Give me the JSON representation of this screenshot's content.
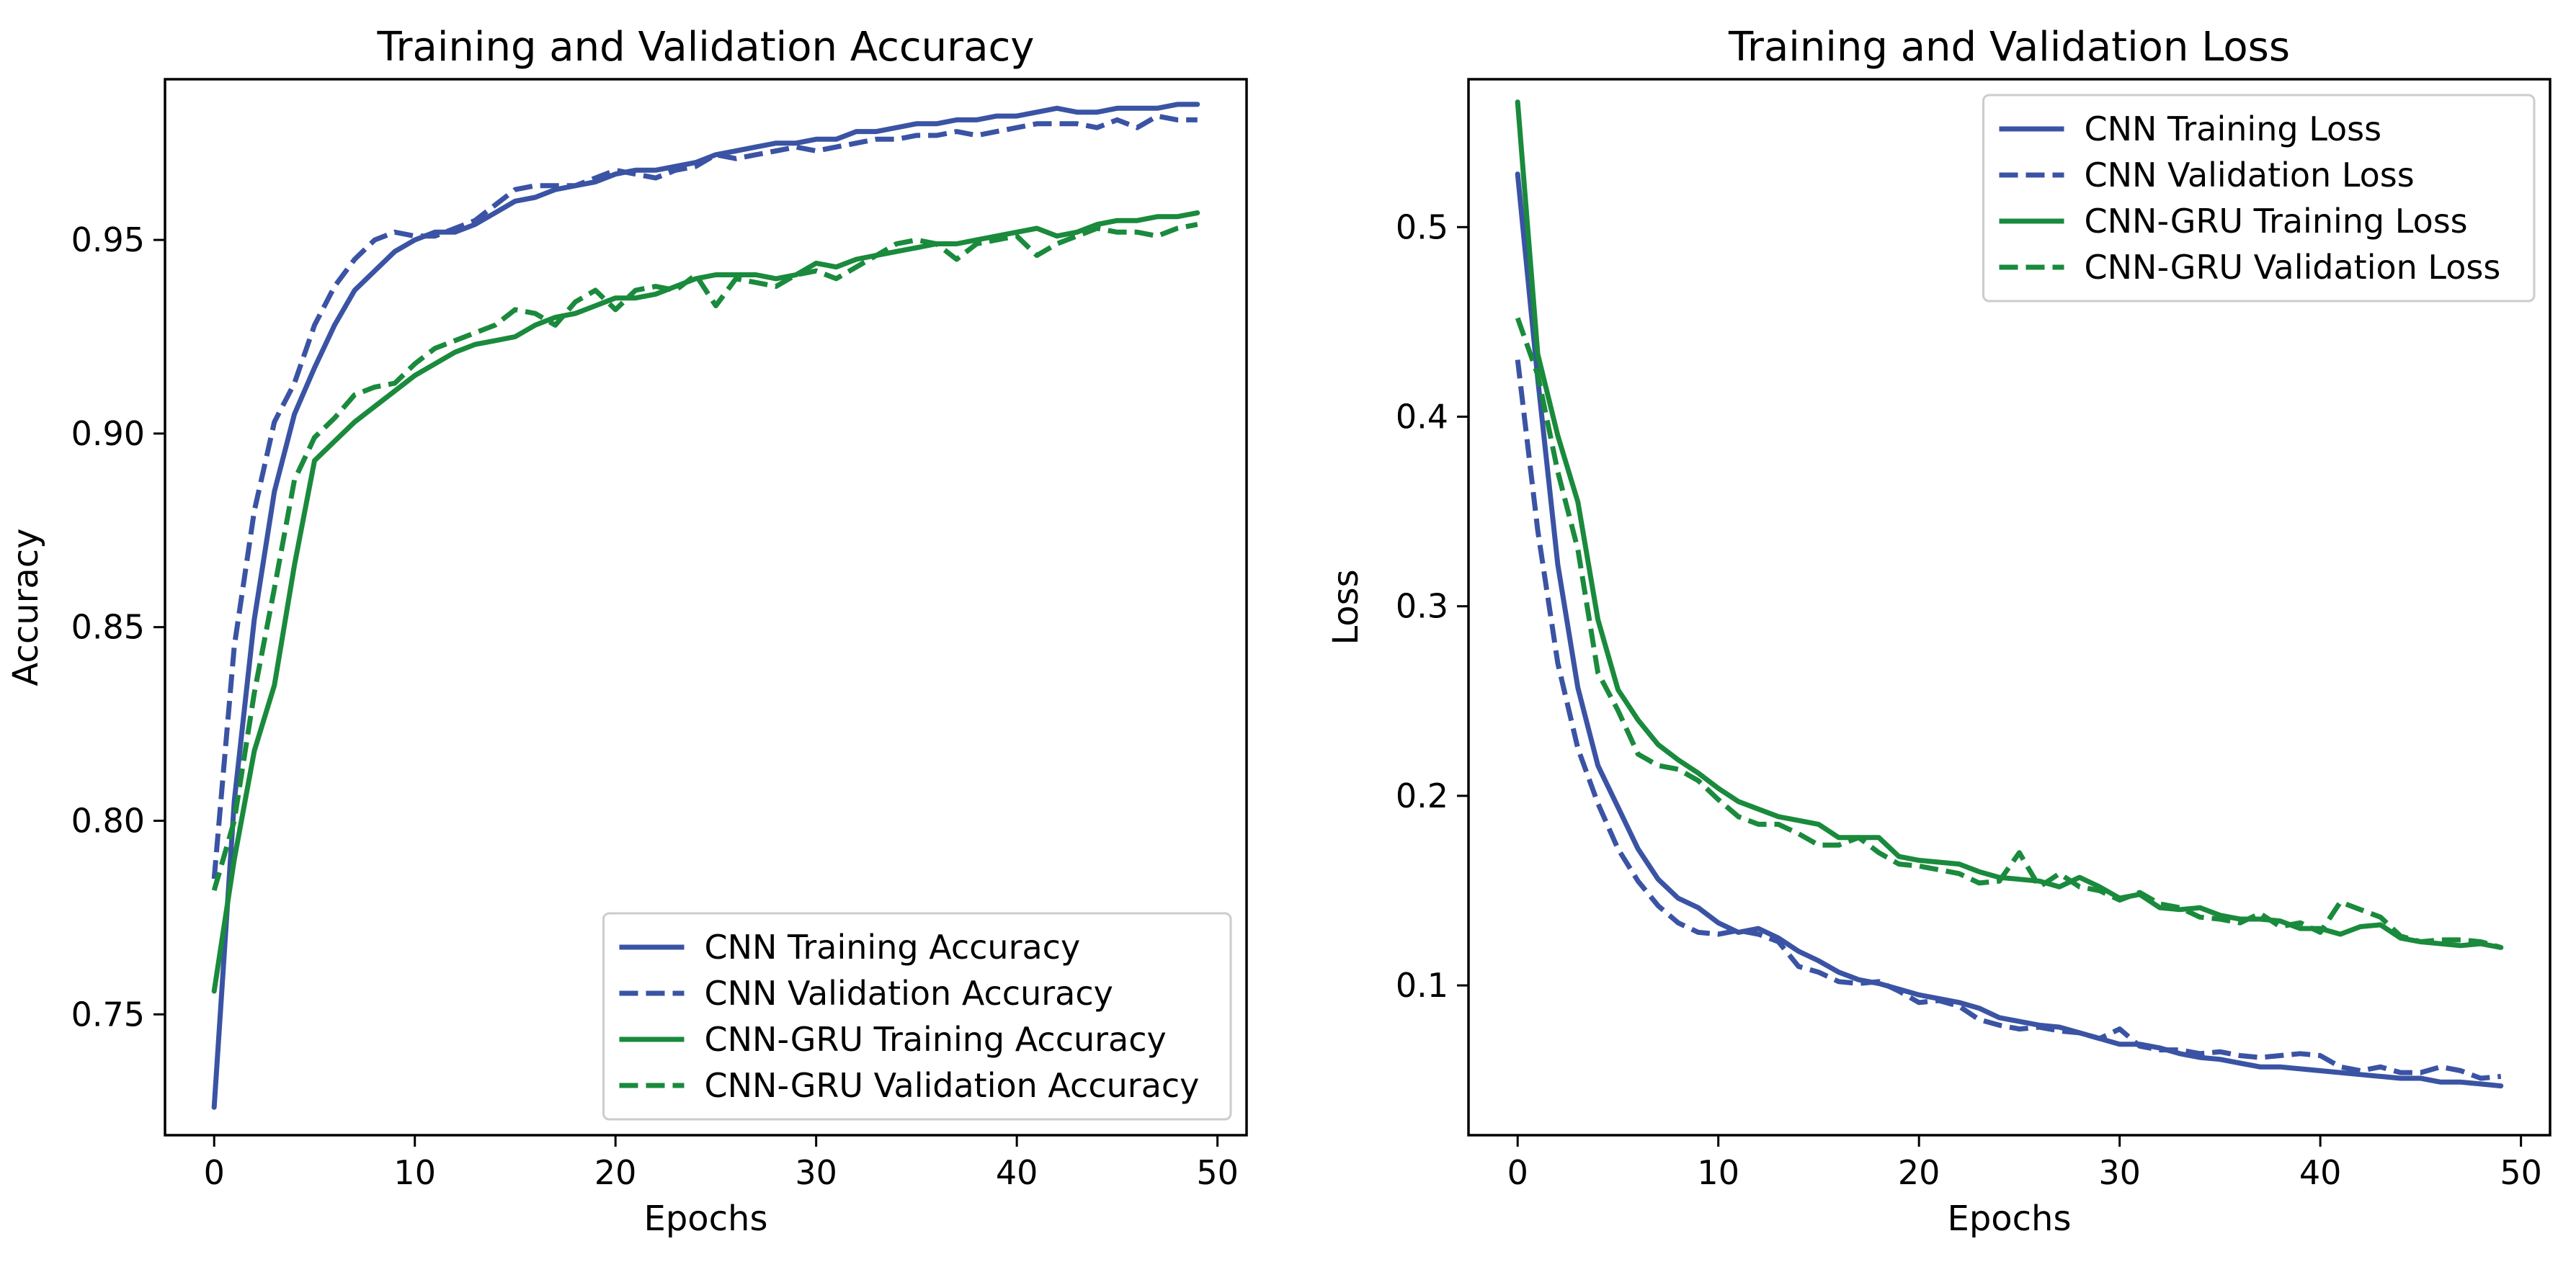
{
  "chart_data": [
    {
      "type": "line",
      "title": "Training and Validation Accuracy",
      "xlabel": "Epochs",
      "ylabel": "Accuracy",
      "xlim": [
        -2.45,
        51.45
      ],
      "ylim": [
        0.7188,
        0.9915
      ],
      "xticks": [
        0,
        10,
        20,
        30,
        40,
        50
      ],
      "xtick_labels": [
        "0",
        "10",
        "20",
        "30",
        "40",
        "50"
      ],
      "yticks": [
        0.75,
        0.8,
        0.85,
        0.9,
        0.95
      ],
      "ytick_labels": [
        "0.75",
        "0.80",
        "0.85",
        "0.90",
        "0.95"
      ],
      "legend_position": "lower-right",
      "series": [
        {
          "name": "CNN Training Accuracy",
          "color": "#3a53a4",
          "dash": "solid",
          "values": [
            0.726,
            0.805,
            0.852,
            0.885,
            0.905,
            0.917,
            0.928,
            0.937,
            0.942,
            0.947,
            0.95,
            0.952,
            0.952,
            0.954,
            0.957,
            0.96,
            0.961,
            0.963,
            0.964,
            0.965,
            0.967,
            0.968,
            0.968,
            0.969,
            0.97,
            0.972,
            0.973,
            0.974,
            0.975,
            0.975,
            0.976,
            0.976,
            0.978,
            0.978,
            0.979,
            0.98,
            0.98,
            0.981,
            0.981,
            0.982,
            0.982,
            0.983,
            0.984,
            0.983,
            0.983,
            0.984,
            0.984,
            0.984,
            0.985,
            0.985
          ]
        },
        {
          "name": "CNN Validation Accuracy",
          "color": "#3a53a4",
          "dash": "dashed",
          "values": [
            0.785,
            0.845,
            0.88,
            0.903,
            0.913,
            0.928,
            0.938,
            0.945,
            0.95,
            0.952,
            0.951,
            0.951,
            0.953,
            0.955,
            0.959,
            0.963,
            0.964,
            0.964,
            0.964,
            0.966,
            0.968,
            0.967,
            0.966,
            0.968,
            0.969,
            0.972,
            0.971,
            0.972,
            0.973,
            0.974,
            0.973,
            0.974,
            0.975,
            0.976,
            0.976,
            0.977,
            0.977,
            0.978,
            0.977,
            0.978,
            0.979,
            0.98,
            0.98,
            0.98,
            0.979,
            0.981,
            0.979,
            0.982,
            0.981,
            0.981
          ]
        },
        {
          "name": "CNN-GRU Training Accuracy",
          "color": "#1a8a3c",
          "dash": "solid",
          "values": [
            0.756,
            0.79,
            0.818,
            0.835,
            0.866,
            0.893,
            0.898,
            0.903,
            0.907,
            0.911,
            0.915,
            0.918,
            0.921,
            0.923,
            0.924,
            0.925,
            0.928,
            0.93,
            0.931,
            0.933,
            0.935,
            0.935,
            0.936,
            0.938,
            0.94,
            0.941,
            0.941,
            0.941,
            0.94,
            0.941,
            0.944,
            0.943,
            0.945,
            0.946,
            0.947,
            0.948,
            0.949,
            0.949,
            0.95,
            0.951,
            0.952,
            0.953,
            0.951,
            0.952,
            0.954,
            0.955,
            0.955,
            0.956,
            0.956,
            0.957
          ]
        },
        {
          "name": "CNN-GRU Validation Accuracy",
          "color": "#1a8a3c",
          "dash": "dashed",
          "values": [
            0.782,
            0.8,
            0.833,
            0.86,
            0.888,
            0.899,
            0.904,
            0.91,
            0.912,
            0.913,
            0.918,
            0.922,
            0.924,
            0.926,
            0.928,
            0.932,
            0.931,
            0.928,
            0.934,
            0.937,
            0.932,
            0.937,
            0.938,
            0.937,
            0.941,
            0.933,
            0.94,
            0.939,
            0.938,
            0.941,
            0.942,
            0.94,
            0.943,
            0.946,
            0.949,
            0.95,
            0.949,
            0.945,
            0.949,
            0.95,
            0.951,
            0.946,
            0.949,
            0.951,
            0.953,
            0.952,
            0.952,
            0.951,
            0.953,
            0.954
          ]
        }
      ]
    },
    {
      "type": "line",
      "title": "Training and Validation Loss",
      "xlabel": "Epochs",
      "ylabel": "Loss",
      "xlim": [
        -2.45,
        51.45
      ],
      "ylim": [
        0.021,
        0.578
      ],
      "xticks": [
        0,
        10,
        20,
        30,
        40,
        50
      ],
      "xtick_labels": [
        "0",
        "10",
        "20",
        "30",
        "40",
        "50"
      ],
      "yticks": [
        0.1,
        0.2,
        0.3,
        0.4,
        0.5
      ],
      "ytick_labels": [
        "0.1",
        "0.2",
        "0.3",
        "0.4",
        "0.5"
      ],
      "legend_position": "upper-right",
      "series": [
        {
          "name": "CNN Training Loss",
          "color": "#3a53a4",
          "dash": "solid",
          "values": [
            0.528,
            0.42,
            0.322,
            0.257,
            0.216,
            0.194,
            0.172,
            0.156,
            0.146,
            0.141,
            0.133,
            0.128,
            0.13,
            0.125,
            0.118,
            0.113,
            0.107,
            0.103,
            0.101,
            0.098,
            0.095,
            0.093,
            0.091,
            0.088,
            0.083,
            0.081,
            0.079,
            0.078,
            0.075,
            0.072,
            0.069,
            0.069,
            0.067,
            0.064,
            0.062,
            0.061,
            0.059,
            0.057,
            0.057,
            0.056,
            0.055,
            0.054,
            0.053,
            0.052,
            0.051,
            0.051,
            0.049,
            0.049,
            0.048,
            0.047
          ]
        },
        {
          "name": "CNN Validation Loss",
          "color": "#3a53a4",
          "dash": "dashed",
          "values": [
            0.43,
            0.34,
            0.27,
            0.225,
            0.196,
            0.172,
            0.155,
            0.142,
            0.133,
            0.128,
            0.127,
            0.129,
            0.127,
            0.123,
            0.11,
            0.107,
            0.102,
            0.101,
            0.102,
            0.097,
            0.091,
            0.092,
            0.089,
            0.082,
            0.079,
            0.077,
            0.078,
            0.076,
            0.075,
            0.072,
            0.077,
            0.068,
            0.066,
            0.066,
            0.064,
            0.065,
            0.063,
            0.062,
            0.063,
            0.064,
            0.063,
            0.057,
            0.055,
            0.057,
            0.054,
            0.054,
            0.057,
            0.055,
            0.051,
            0.052
          ]
        },
        {
          "name": "CNN-GRU Training Loss",
          "color": "#1a8a3c",
          "dash": "solid",
          "values": [
            0.566,
            0.433,
            0.39,
            0.355,
            0.293,
            0.256,
            0.24,
            0.227,
            0.219,
            0.212,
            0.204,
            0.197,
            0.193,
            0.189,
            0.187,
            0.185,
            0.178,
            0.178,
            0.178,
            0.168,
            0.166,
            0.165,
            0.164,
            0.16,
            0.157,
            0.156,
            0.155,
            0.152,
            0.157,
            0.152,
            0.146,
            0.148,
            0.141,
            0.14,
            0.141,
            0.137,
            0.135,
            0.135,
            0.134,
            0.13,
            0.13,
            0.127,
            0.131,
            0.132,
            0.125,
            0.123,
            0.122,
            0.121,
            0.122,
            0.12
          ]
        },
        {
          "name": "CNN-GRU Validation Loss",
          "color": "#1a8a3c",
          "dash": "dashed",
          "values": [
            0.452,
            0.422,
            0.371,
            0.33,
            0.265,
            0.245,
            0.222,
            0.216,
            0.214,
            0.208,
            0.198,
            0.189,
            0.185,
            0.185,
            0.18,
            0.174,
            0.174,
            0.178,
            0.17,
            0.164,
            0.163,
            0.161,
            0.159,
            0.154,
            0.155,
            0.17,
            0.152,
            0.159,
            0.152,
            0.15,
            0.145,
            0.149,
            0.143,
            0.141,
            0.136,
            0.135,
            0.133,
            0.138,
            0.131,
            0.133,
            0.128,
            0.144,
            0.14,
            0.136,
            0.126,
            0.123,
            0.124,
            0.124,
            0.123,
            0.12
          ]
        }
      ]
    }
  ]
}
